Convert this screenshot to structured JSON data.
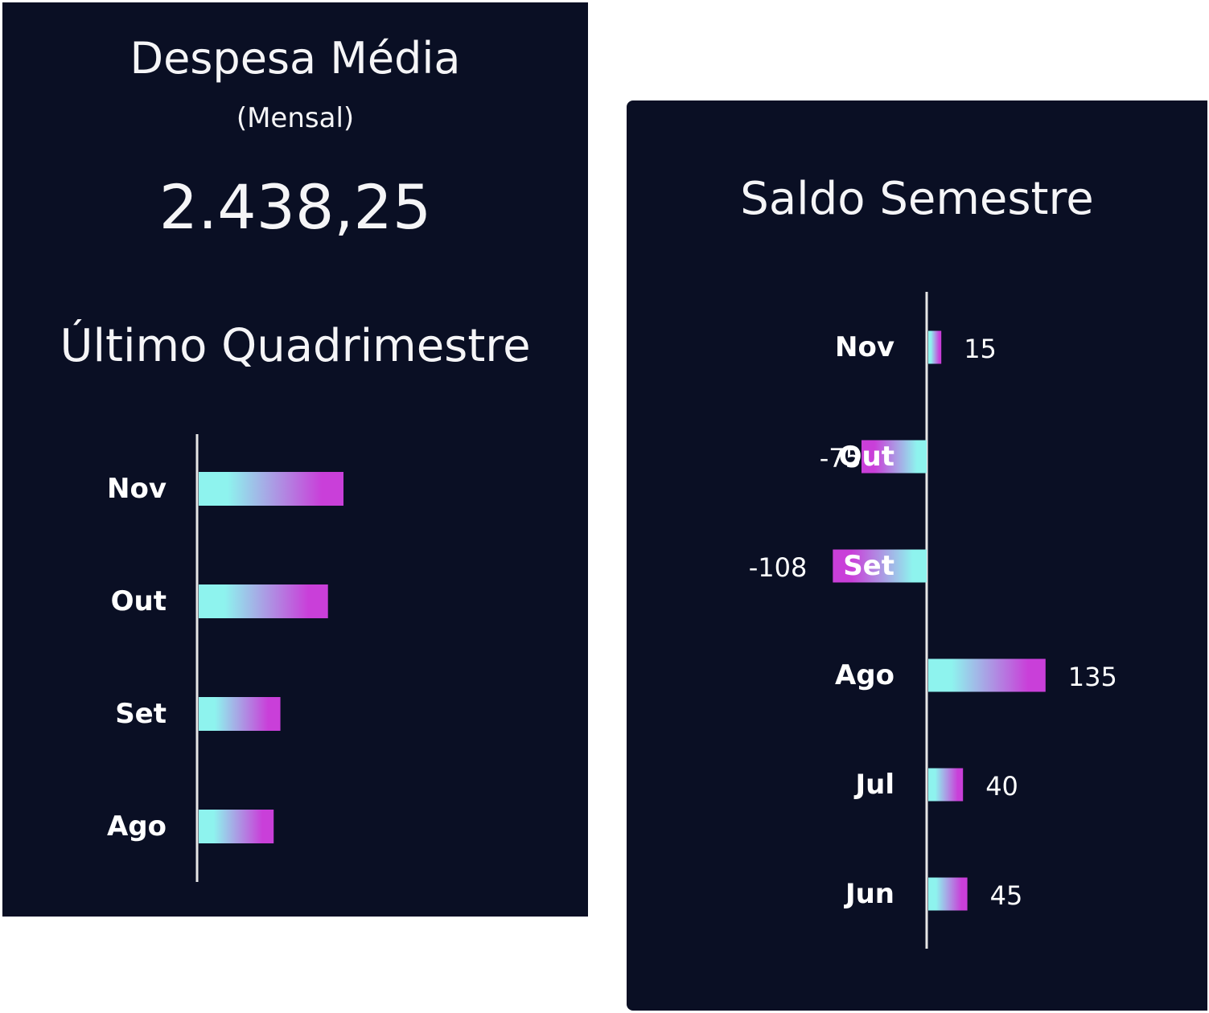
{
  "left_panel": {
    "title": "Despesa Média",
    "subtitle": "(Mensal)",
    "value": "2.438,25"
  },
  "right_panel": {},
  "colors": {
    "panel_background": "#0a0f24",
    "bar_gradient_start": "#8ef3ee",
    "bar_gradient_end": "#c93fd9",
    "axis_line": "#e6e6e6",
    "text": "#ffffff"
  },
  "chart_data": [
    {
      "type": "bar",
      "orientation": "horizontal",
      "title": "Último Quadrimestre",
      "categories": [
        "Nov",
        "Out",
        "Set",
        "Ago"
      ],
      "values": [
        2800,
        2500,
        1580,
        1450
      ],
      "xlim": [
        0,
        7000
      ],
      "grid": false,
      "legend": "none"
    },
    {
      "type": "bar",
      "orientation": "horizontal",
      "title": "Saldo Semestre",
      "categories": [
        "Nov",
        "Out",
        "Set",
        "Ago",
        "Jul",
        "Jun"
      ],
      "values": [
        15,
        -75,
        -108,
        135,
        40,
        45
      ],
      "data_labels": [
        "15",
        "-75",
        "-108",
        "135",
        "40",
        "45"
      ],
      "grid": false,
      "legend": "none"
    }
  ]
}
